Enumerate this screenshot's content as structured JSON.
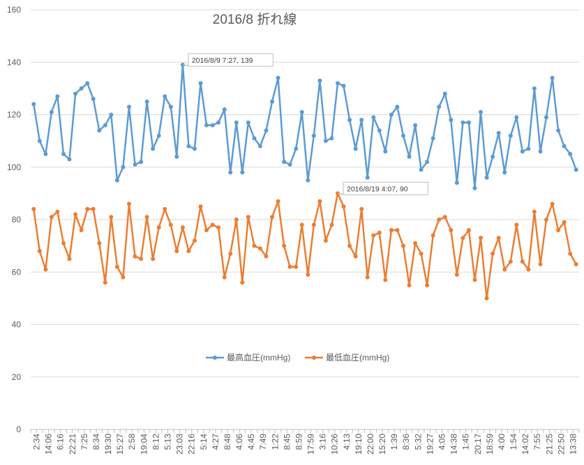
{
  "chart_data": {
    "type": "line",
    "title": "2016/8  折れ線",
    "xlabel": "",
    "ylabel": "",
    "ylim": [
      0,
      160
    ],
    "yticks": [
      0,
      20,
      40,
      60,
      80,
      100,
      120,
      140,
      160
    ],
    "grid": true,
    "legend_position": "bottom-center",
    "x_tick_labels": [
      "2:34",
      "14:06",
      "6:16",
      "22:21",
      "7:25",
      "8:34",
      "19:30",
      "15:27",
      "2:58",
      "19:04",
      "8:12",
      "5:13",
      "23:03",
      "22:16",
      "5:14",
      "4:27",
      "8:48",
      "4:06",
      "4:45",
      "7:49",
      "1:22",
      "8:45",
      "8:59",
      "17:59",
      "3:16",
      "10:26",
      "4:13",
      "19:10",
      "22:00",
      "15:20",
      "1:39",
      "8:36",
      "5:32",
      "19:27",
      "4:05",
      "14:38",
      "1:45",
      "20:17",
      "18:59",
      "4:00",
      "1:54",
      "14:02",
      "7:55",
      "21:25",
      "22:50",
      "13:38"
    ],
    "series": [
      {
        "name": "最高血圧(mmHg)",
        "color": "#5b9bd5",
        "values": [
          124,
          110,
          105,
          121,
          127,
          105,
          103,
          128,
          130,
          132,
          126,
          114,
          116,
          120,
          95,
          100,
          123,
          101,
          102,
          125,
          107,
          112,
          127,
          123,
          104,
          139,
          108,
          107,
          132,
          116,
          116,
          117,
          122,
          98,
          117,
          98,
          117,
          111,
          108,
          114,
          125,
          134,
          102,
          101,
          107,
          121,
          95,
          112,
          133,
          110,
          111,
          132,
          131,
          118,
          107,
          118,
          96,
          119,
          114,
          106,
          120,
          123,
          112,
          104,
          116,
          99,
          102,
          111,
          123,
          128,
          118,
          94,
          117,
          117,
          92,
          121,
          96,
          104,
          113,
          98,
          112,
          119,
          106,
          107,
          130,
          106,
          119,
          134,
          114,
          108,
          105,
          99
        ]
      },
      {
        "name": "最低血圧(mmHg)",
        "color": "#ed7d31",
        "values": [
          84,
          68,
          61,
          81,
          83,
          71,
          65,
          82,
          76,
          84,
          84,
          71,
          56,
          81,
          62,
          58,
          86,
          66,
          65,
          81,
          65,
          77,
          84,
          78,
          68,
          77,
          68,
          72,
          85,
          76,
          78,
          77,
          58,
          67,
          80,
          56,
          81,
          70,
          69,
          66,
          81,
          87,
          70,
          62,
          62,
          78,
          59,
          78,
          87,
          72,
          78,
          90,
          85,
          70,
          66,
          84,
          58,
          74,
          75,
          57,
          76,
          76,
          70,
          55,
          71,
          67,
          55,
          74,
          80,
          81,
          76,
          59,
          73,
          76,
          57,
          73,
          50,
          67,
          73,
          61,
          64,
          78,
          64,
          61,
          83,
          63,
          80,
          86,
          76,
          79,
          67,
          63
        ]
      }
    ],
    "annotations": [
      {
        "text": "2016/8/9 7:27, 139",
        "series": 0,
        "index": 25
      },
      {
        "text": "2016/8/19 4:07, 90",
        "series": 1,
        "index": 51
      }
    ]
  }
}
